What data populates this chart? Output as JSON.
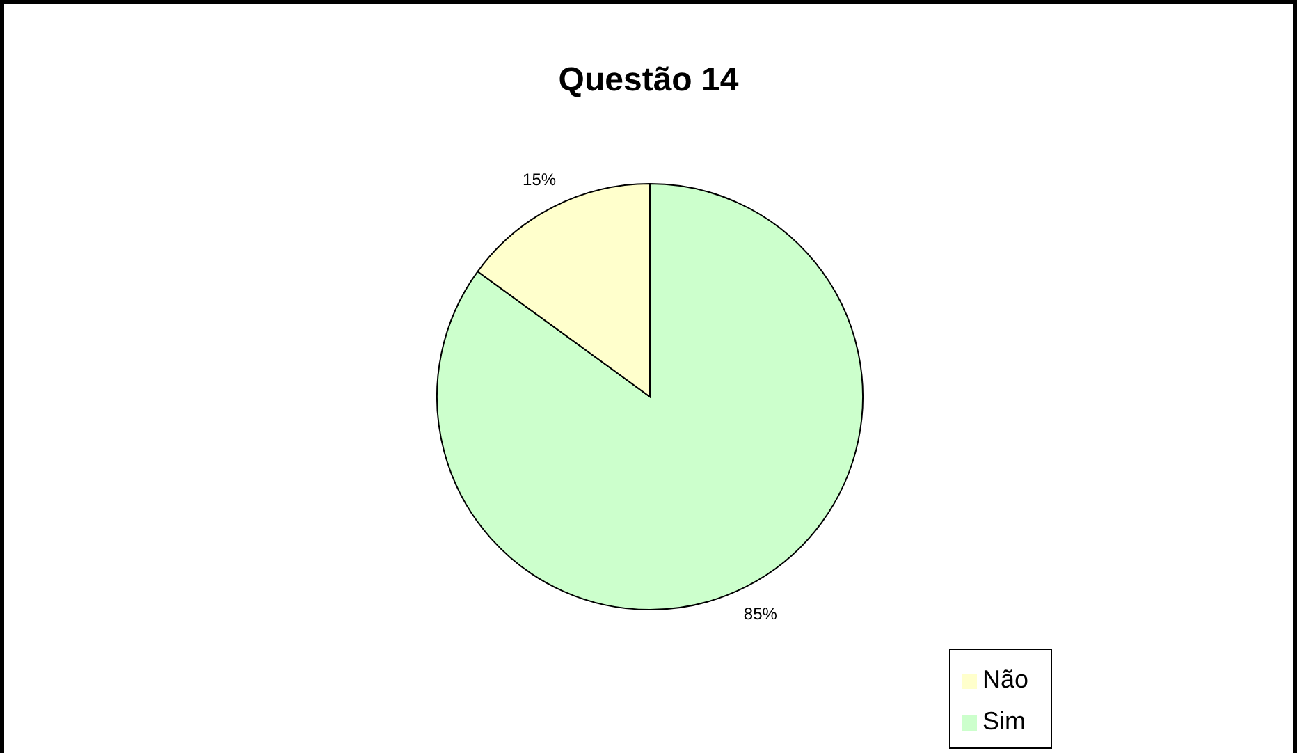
{
  "chart_data": {
    "type": "pie",
    "title": "Questão 14",
    "categories": [
      "Sim",
      "Não"
    ],
    "values": [
      85,
      15
    ],
    "colors": [
      "#ccffcc",
      "#ffffcc"
    ],
    "value_labels": [
      "85%",
      "15%"
    ],
    "legend": "bottom right"
  }
}
